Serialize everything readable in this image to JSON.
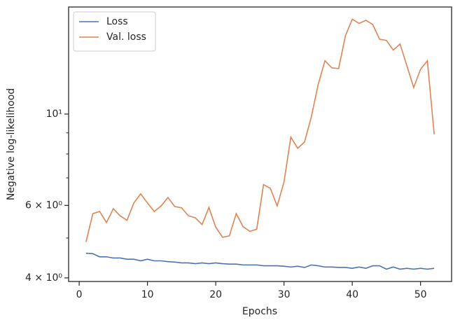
{
  "chart_data": {
    "type": "line",
    "xlabel": "Epochs",
    "ylabel": "Negative log-likelihood",
    "x": [
      1,
      2,
      3,
      4,
      5,
      6,
      7,
      8,
      9,
      10,
      11,
      12,
      13,
      14,
      15,
      16,
      17,
      18,
      19,
      20,
      21,
      22,
      23,
      24,
      25,
      26,
      27,
      28,
      29,
      30,
      31,
      32,
      33,
      34,
      35,
      36,
      37,
      38,
      39,
      40,
      41,
      42,
      43,
      44,
      45,
      46,
      47,
      48,
      49,
      50,
      51,
      52
    ],
    "series": [
      {
        "name": "Loss",
        "color": "#4c72b0",
        "values": [
          4.59,
          4.58,
          4.5,
          4.5,
          4.47,
          4.47,
          4.44,
          4.44,
          4.4,
          4.44,
          4.4,
          4.4,
          4.38,
          4.37,
          4.35,
          4.35,
          4.33,
          4.35,
          4.33,
          4.35,
          4.33,
          4.32,
          4.32,
          4.3,
          4.3,
          4.3,
          4.28,
          4.28,
          4.28,
          4.27,
          4.25,
          4.27,
          4.24,
          4.3,
          4.28,
          4.25,
          4.25,
          4.24,
          4.24,
          4.22,
          4.25,
          4.22,
          4.28,
          4.28,
          4.2,
          4.25,
          4.2,
          4.22,
          4.2,
          4.22,
          4.2,
          4.22
        ]
      },
      {
        "name": "Val. loss",
        "color": "#dd8452",
        "values": [
          4.89,
          5.73,
          5.8,
          5.45,
          5.89,
          5.66,
          5.52,
          6.08,
          6.4,
          6.08,
          5.8,
          5.98,
          6.27,
          5.96,
          5.92,
          5.66,
          5.6,
          5.39,
          5.93,
          5.31,
          5.02,
          5.06,
          5.73,
          5.33,
          5.19,
          5.25,
          6.74,
          6.6,
          5.98,
          6.84,
          8.79,
          8.26,
          8.55,
          9.84,
          11.79,
          13.47,
          12.95,
          12.9,
          15.5,
          17.0,
          16.6,
          16.9,
          16.5,
          15.2,
          15.1,
          14.3,
          14.8,
          13.1,
          11.6,
          12.85,
          13.47,
          8.93
        ]
      }
    ],
    "xlim": [
      -1.55,
      54.55
    ],
    "xticks": [
      0,
      10,
      20,
      30,
      40,
      50
    ],
    "ylim": [
      3.92,
      18.2
    ],
    "ylog": true,
    "yticks": [
      {
        "value": 4,
        "label": "4 × 10⁰"
      },
      {
        "value": 6,
        "label": "6 × 10⁰"
      },
      {
        "value": 10,
        "label": "10¹"
      }
    ],
    "yminorticks": [
      5,
      7,
      8,
      9
    ],
    "legend": "upper left"
  }
}
